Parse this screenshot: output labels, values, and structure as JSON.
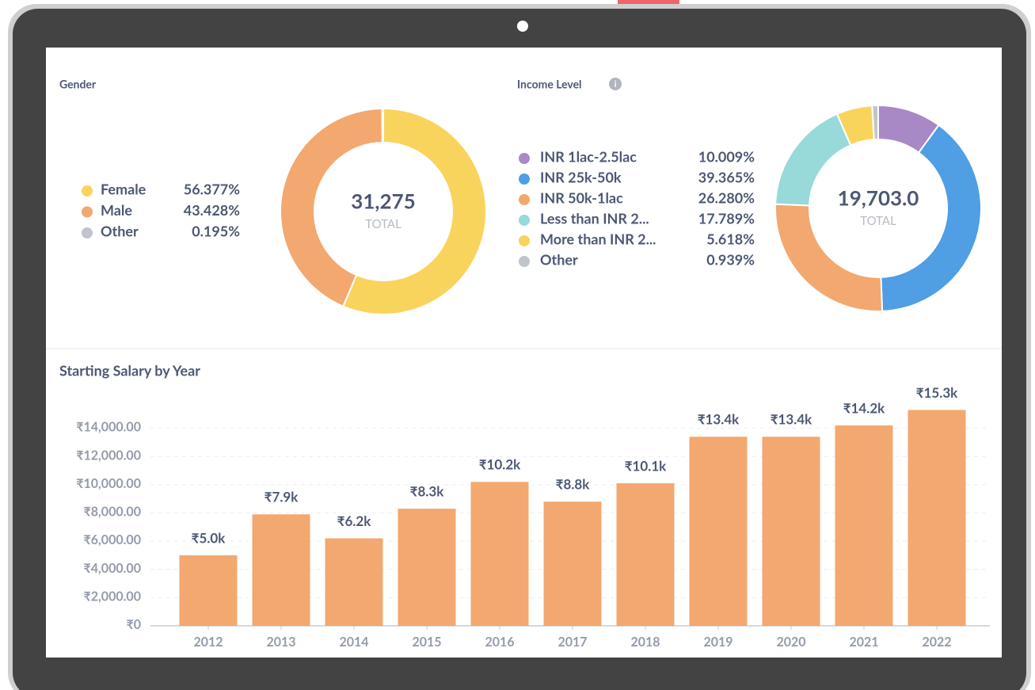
{
  "chart_data": [
    {
      "type": "donut",
      "title": "Gender",
      "categories": [
        "Female",
        "Male",
        "Other"
      ],
      "values": [
        56.377,
        43.428,
        0.195
      ],
      "value_labels": [
        "56.377%",
        "43.428%",
        "0.195%"
      ],
      "colors": [
        "#f9d45c",
        "#f2a86f",
        "#c1c4cc"
      ],
      "center_text": "31,275",
      "center_label": "TOTAL"
    },
    {
      "type": "donut",
      "title": "Income Level",
      "categories": [
        "INR 1lac-2.5lac",
        "INR 25k-50k",
        "INR 50k-1lac",
        "Less than INR 2...",
        "More than INR 2...",
        "Other"
      ],
      "values": [
        10.009,
        39.365,
        26.28,
        17.789,
        5.618,
        0.939
      ],
      "value_labels": [
        "10.009%",
        "39.365%",
        "26.280%",
        "17.789%",
        "5.618%",
        "0.939%"
      ],
      "colors": [
        "#a989c5",
        "#509ee3",
        "#f2a86f",
        "#98d9d9",
        "#f9d45c",
        "#c1c4cc"
      ],
      "center_text": "19,703.0",
      "center_label": "TOTAL"
    },
    {
      "type": "bar",
      "title": "Starting Salary by Year",
      "categories": [
        "2012",
        "2013",
        "2014",
        "2015",
        "2016",
        "2017",
        "2018",
        "2019",
        "2020",
        "2021",
        "2022"
      ],
      "values": [
        5000,
        7900,
        6200,
        8300,
        10200,
        8800,
        10100,
        13400,
        13400,
        14200,
        15300
      ],
      "value_labels": [
        "₹5.0k",
        "₹7.9k",
        "₹6.2k",
        "₹8.3k",
        "₹10.2k",
        "₹8.8k",
        "₹10.1k",
        "₹13.4k",
        "₹13.4k",
        "₹14.2k",
        "₹15.3k"
      ],
      "color": "#f2a86f",
      "ylim": [
        0,
        16000
      ],
      "yticks": [
        {
          "value": 0,
          "label": "₹0"
        },
        {
          "value": 2000,
          "label": "₹2,000.00"
        },
        {
          "value": 4000,
          "label": "₹4,000.00"
        },
        {
          "value": 6000,
          "label": "₹6,000.00"
        },
        {
          "value": 8000,
          "label": "₹8,000.00"
        },
        {
          "value": 10000,
          "label": "₹10,000.00"
        },
        {
          "value": 12000,
          "label": "₹12,000.00"
        },
        {
          "value": 14000,
          "label": "₹14,000.00"
        }
      ],
      "grid": true
    }
  ]
}
